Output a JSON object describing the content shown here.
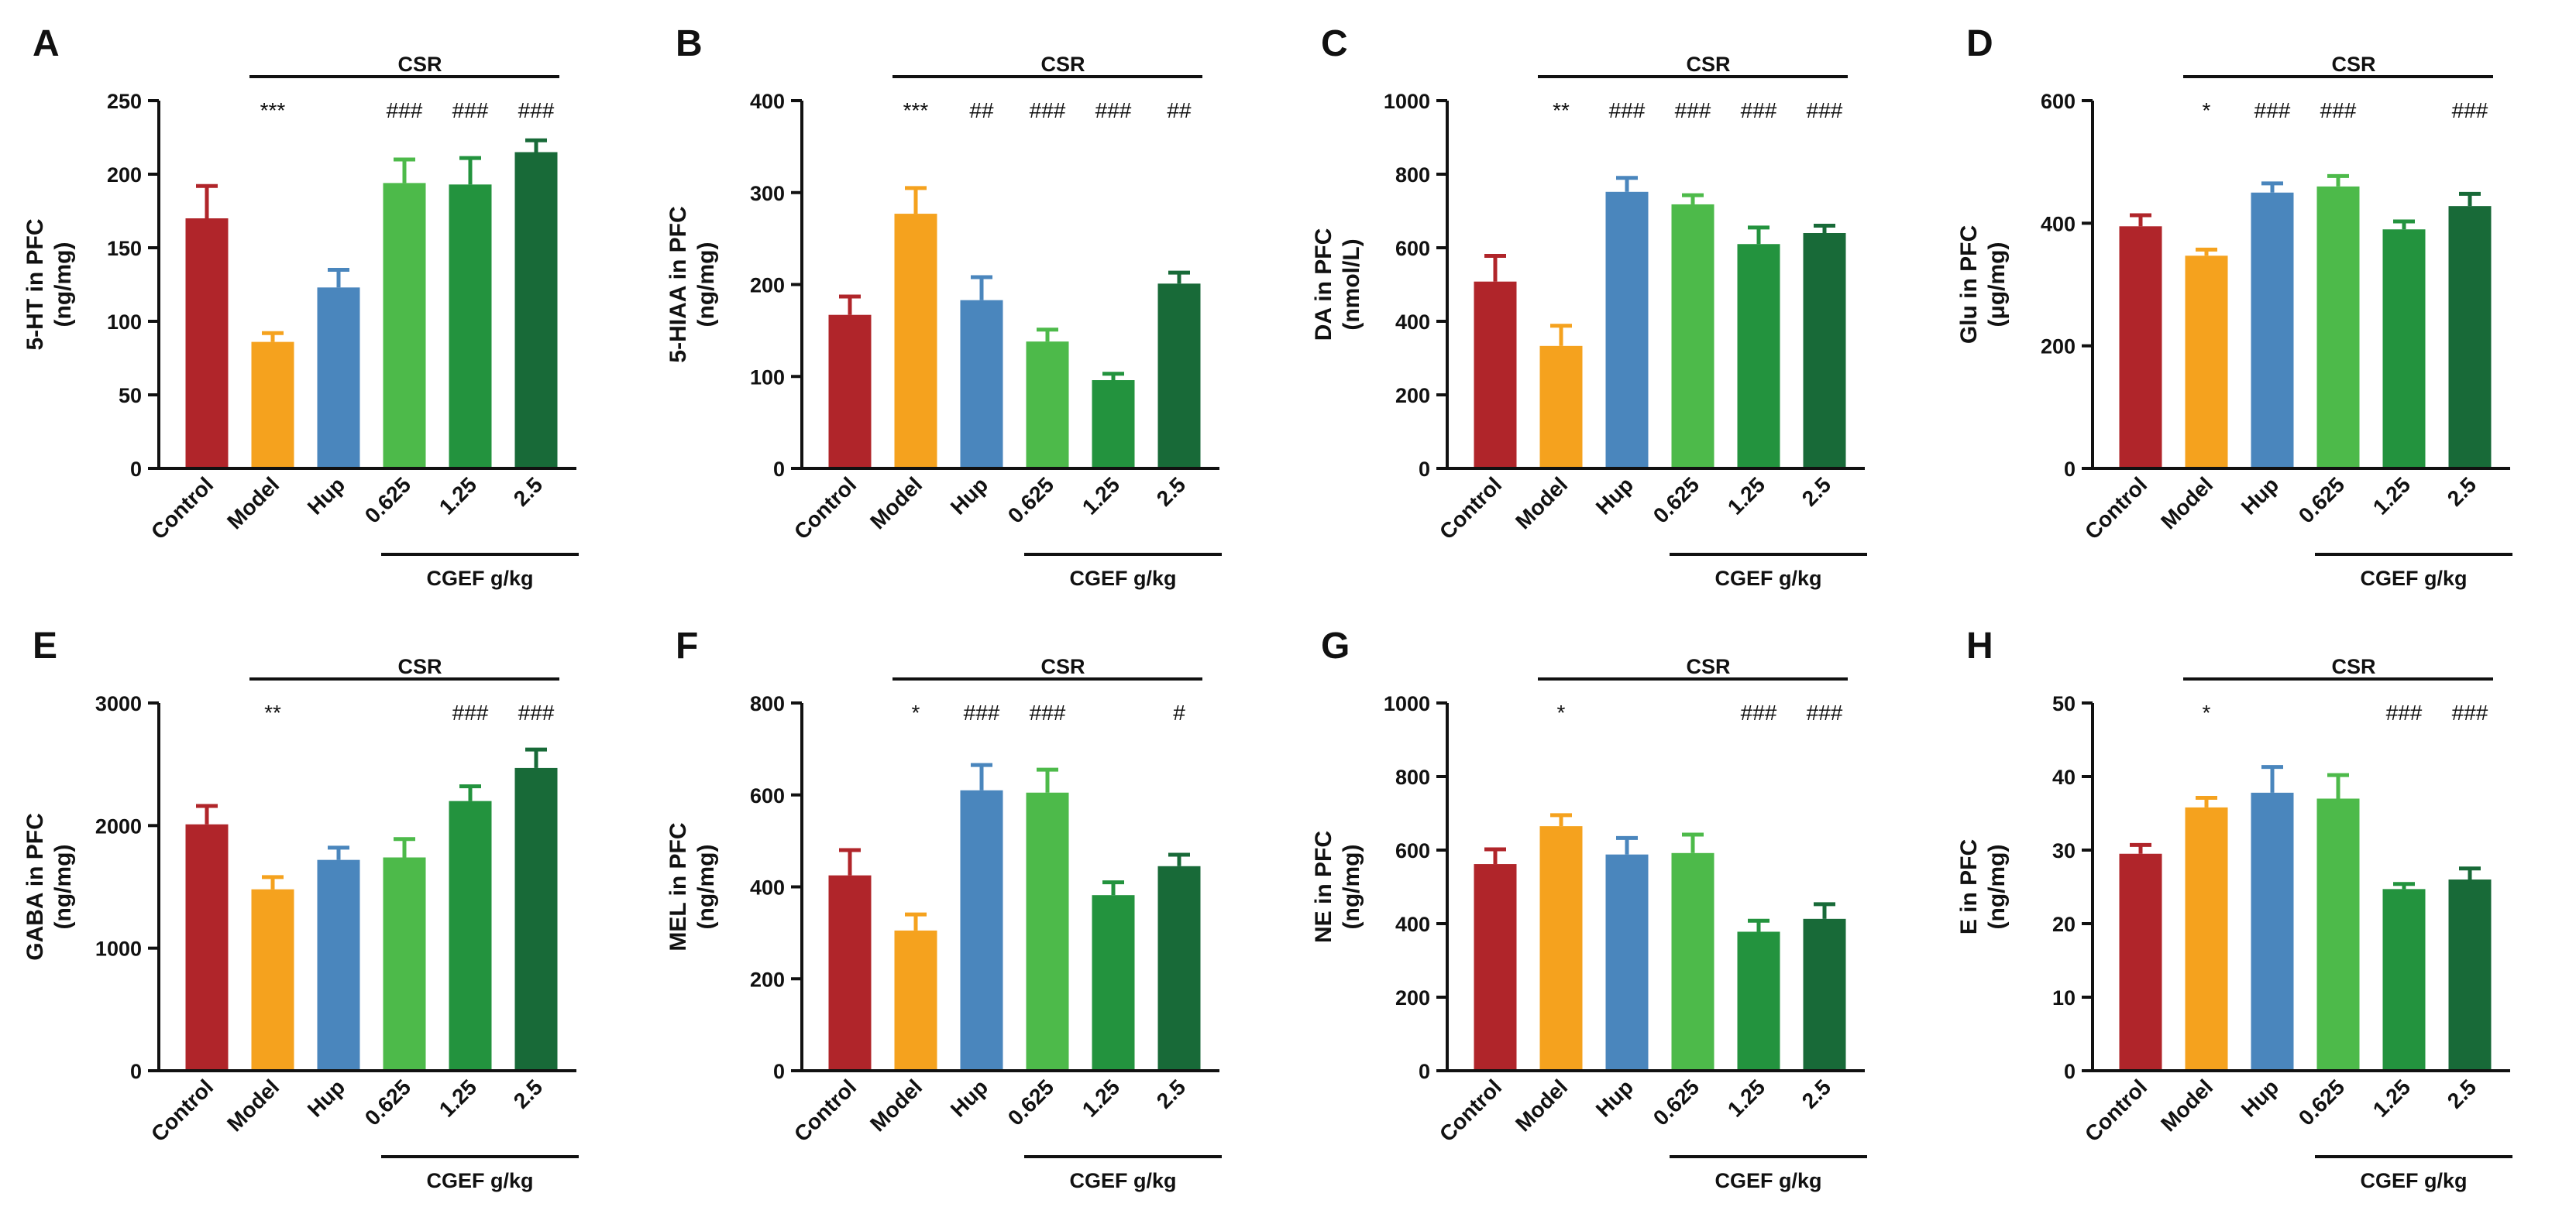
{
  "figure": {
    "group_label": "CSR",
    "dose_label": "CGEF g/kg",
    "categories": [
      "Control",
      "Model",
      "Hup",
      "0.625",
      "1.25",
      "2.5"
    ],
    "colors": [
      "#b0252a",
      "#f5a21e",
      "#4a86bd",
      "#4dba4a",
      "#23933e",
      "#186a38"
    ]
  },
  "chart_data": [
    {
      "panel": "A",
      "type": "bar",
      "ylabel": "5-HT in PFC",
      "ylabel2": "(ng/mg)",
      "ylim": [
        0,
        250
      ],
      "ticks": [
        0,
        50,
        100,
        150,
        200,
        250
      ],
      "categories": [
        "Control",
        "Model",
        "Hup",
        "0.625",
        "1.25",
        "2.5"
      ],
      "values": [
        170,
        86,
        123,
        194,
        193,
        215
      ],
      "errors": [
        22,
        6,
        12,
        16,
        18,
        8
      ],
      "significance": [
        "",
        "***",
        "",
        "###",
        "###",
        "###"
      ]
    },
    {
      "panel": "B",
      "type": "bar",
      "ylabel": "5-HIAA in PFC",
      "ylabel2": "(ng/mg)",
      "ylim": [
        0,
        400
      ],
      "ticks": [
        0,
        100,
        200,
        300,
        400
      ],
      "categories": [
        "Control",
        "Model",
        "Hup",
        "0.625",
        "1.25",
        "2.5"
      ],
      "values": [
        167,
        277,
        183,
        138,
        96,
        201
      ],
      "errors": [
        20,
        28,
        25,
        13,
        7,
        12
      ],
      "significance": [
        "",
        "***",
        "##",
        "###",
        "###",
        "##"
      ]
    },
    {
      "panel": "C",
      "type": "bar",
      "ylabel": "DA in PFC",
      "ylabel2": "(nmol/L)",
      "ylim": [
        0,
        1000
      ],
      "ticks": [
        0,
        200,
        400,
        600,
        800,
        1000
      ],
      "categories": [
        "Control",
        "Model",
        "Hup",
        "0.625",
        "1.25",
        "2.5"
      ],
      "values": [
        508,
        333,
        752,
        718,
        610,
        640
      ],
      "errors": [
        70,
        55,
        38,
        25,
        45,
        20
      ],
      "significance": [
        "",
        "**",
        "###",
        "###",
        "###",
        "###"
      ]
    },
    {
      "panel": "D",
      "type": "bar",
      "ylabel": "Glu in PFC",
      "ylabel2": "(μg/mg)",
      "ylim": [
        0,
        600
      ],
      "ticks": [
        0,
        200,
        400,
        600
      ],
      "categories": [
        "Control",
        "Model",
        "Hup",
        "0.625",
        "1.25",
        "2.5"
      ],
      "values": [
        395,
        347,
        450,
        460,
        390,
        428
      ],
      "errors": [
        18,
        10,
        15,
        17,
        13,
        20
      ],
      "significance": [
        "",
        "*",
        "###",
        "###",
        "",
        "###"
      ]
    },
    {
      "panel": "E",
      "type": "bar",
      "ylabel": "GABA in PFC",
      "ylabel2": "(ng/mg)",
      "ylim": [
        0,
        3000
      ],
      "ticks": [
        0,
        1000,
        2000,
        3000
      ],
      "categories": [
        "Control",
        "Model",
        "Hup",
        "0.625",
        "1.25",
        "2.5"
      ],
      "values": [
        2010,
        1480,
        1720,
        1740,
        2200,
        2470
      ],
      "errors": [
        150,
        100,
        100,
        150,
        120,
        150
      ],
      "significance": [
        "",
        "**",
        "",
        "",
        "###",
        "###"
      ]
    },
    {
      "panel": "F",
      "type": "bar",
      "ylabel": "MEL in PFC",
      "ylabel2": "(ng/mg)",
      "ylim": [
        0,
        800
      ],
      "ticks": [
        0,
        200,
        400,
        600,
        800
      ],
      "categories": [
        "Control",
        "Model",
        "Hup",
        "0.625",
        "1.25",
        "2.5"
      ],
      "values": [
        425,
        305,
        610,
        605,
        382,
        445
      ],
      "errors": [
        55,
        35,
        55,
        50,
        28,
        25
      ],
      "significance": [
        "",
        "*",
        "###",
        "###",
        "",
        "#"
      ]
    },
    {
      "panel": "G",
      "type": "bar",
      "ylabel": "NE in PFC",
      "ylabel2": "(ng/mg)",
      "ylim": [
        0,
        1000
      ],
      "ticks": [
        0,
        200,
        400,
        600,
        800,
        1000
      ],
      "categories": [
        "Control",
        "Model",
        "Hup",
        "0.625",
        "1.25",
        "2.5"
      ],
      "values": [
        562,
        665,
        588,
        592,
        378,
        413
      ],
      "errors": [
        40,
        30,
        45,
        50,
        30,
        40
      ],
      "significance": [
        "",
        "*",
        "",
        "",
        "###",
        "###"
      ]
    },
    {
      "panel": "H",
      "type": "bar",
      "ylabel": "E in PFC",
      "ylabel2": "(ng/mg)",
      "ylim": [
        0,
        50
      ],
      "ticks": [
        0,
        10,
        20,
        30,
        40,
        50
      ],
      "categories": [
        "Control",
        "Model",
        "Hup",
        "0.625",
        "1.25",
        "2.5"
      ],
      "values": [
        29.5,
        35.8,
        37.8,
        37.0,
        24.7,
        26.0
      ],
      "errors": [
        1.2,
        1.3,
        3.5,
        3.2,
        0.7,
        1.5
      ],
      "significance": [
        "",
        "*",
        "",
        "",
        "###",
        "###"
      ]
    }
  ]
}
